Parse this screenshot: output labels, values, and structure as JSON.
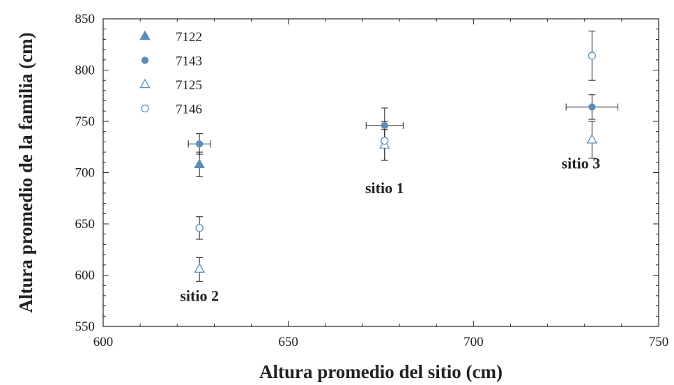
{
  "chart_data": {
    "type": "scatter",
    "title": "",
    "xlabel": "Altura promedio del sitio (cm)",
    "ylabel": "Altura promedio de la familia (cm)",
    "xlim": [
      600,
      750
    ],
    "ylim": [
      550,
      850
    ],
    "xticks": [
      600,
      650,
      700,
      750
    ],
    "yticks": [
      550,
      600,
      650,
      700,
      750,
      800,
      850
    ],
    "grid": false,
    "legend_position": "top-left",
    "marker_color": "#5b8db8",
    "series": [
      {
        "name": "7122",
        "marker": "triangle-filled",
        "points": [
          {
            "x": 626,
            "y": 708,
            "yerr_lo": 12,
            "yerr_hi": 12,
            "xerr": 0
          }
        ]
      },
      {
        "name": "7143",
        "marker": "circle-filled",
        "points": [
          {
            "x": 626,
            "y": 728,
            "yerr_lo": 10,
            "yerr_hi": 10,
            "xerr": 3
          },
          {
            "x": 676,
            "y": 746,
            "yerr_lo": 17,
            "yerr_hi": 17,
            "xerr": 5
          },
          {
            "x": 732,
            "y": 764,
            "yerr_lo": 12,
            "yerr_hi": 12,
            "xerr": 7
          }
        ]
      },
      {
        "name": "7125",
        "marker": "triangle-open",
        "points": [
          {
            "x": 626,
            "y": 606,
            "yerr_lo": 12,
            "yerr_hi": 11,
            "xerr": 0
          },
          {
            "x": 676,
            "y": 727,
            "yerr_lo": 15,
            "yerr_hi": 15,
            "xerr": 0
          },
          {
            "x": 732,
            "y": 732,
            "yerr_lo": 18,
            "yerr_hi": 18,
            "xerr": 0
          }
        ]
      },
      {
        "name": "7146",
        "marker": "circle-open",
        "points": [
          {
            "x": 626,
            "y": 646,
            "yerr_lo": 11,
            "yerr_hi": 11,
            "xerr": 0
          },
          {
            "x": 676,
            "y": 731,
            "yerr_lo": 19,
            "yerr_hi": 19,
            "xerr": 0
          },
          {
            "x": 732,
            "y": 814,
            "yerr_lo": 24,
            "yerr_hi": 24,
            "xerr": 0
          }
        ]
      }
    ],
    "annotations": [
      {
        "text": "sitio 2",
        "x": 626,
        "y": 575
      },
      {
        "text": "sitio 1",
        "x": 676,
        "y": 680
      },
      {
        "text": "sitio 3",
        "x": 729,
        "y": 704
      }
    ]
  }
}
